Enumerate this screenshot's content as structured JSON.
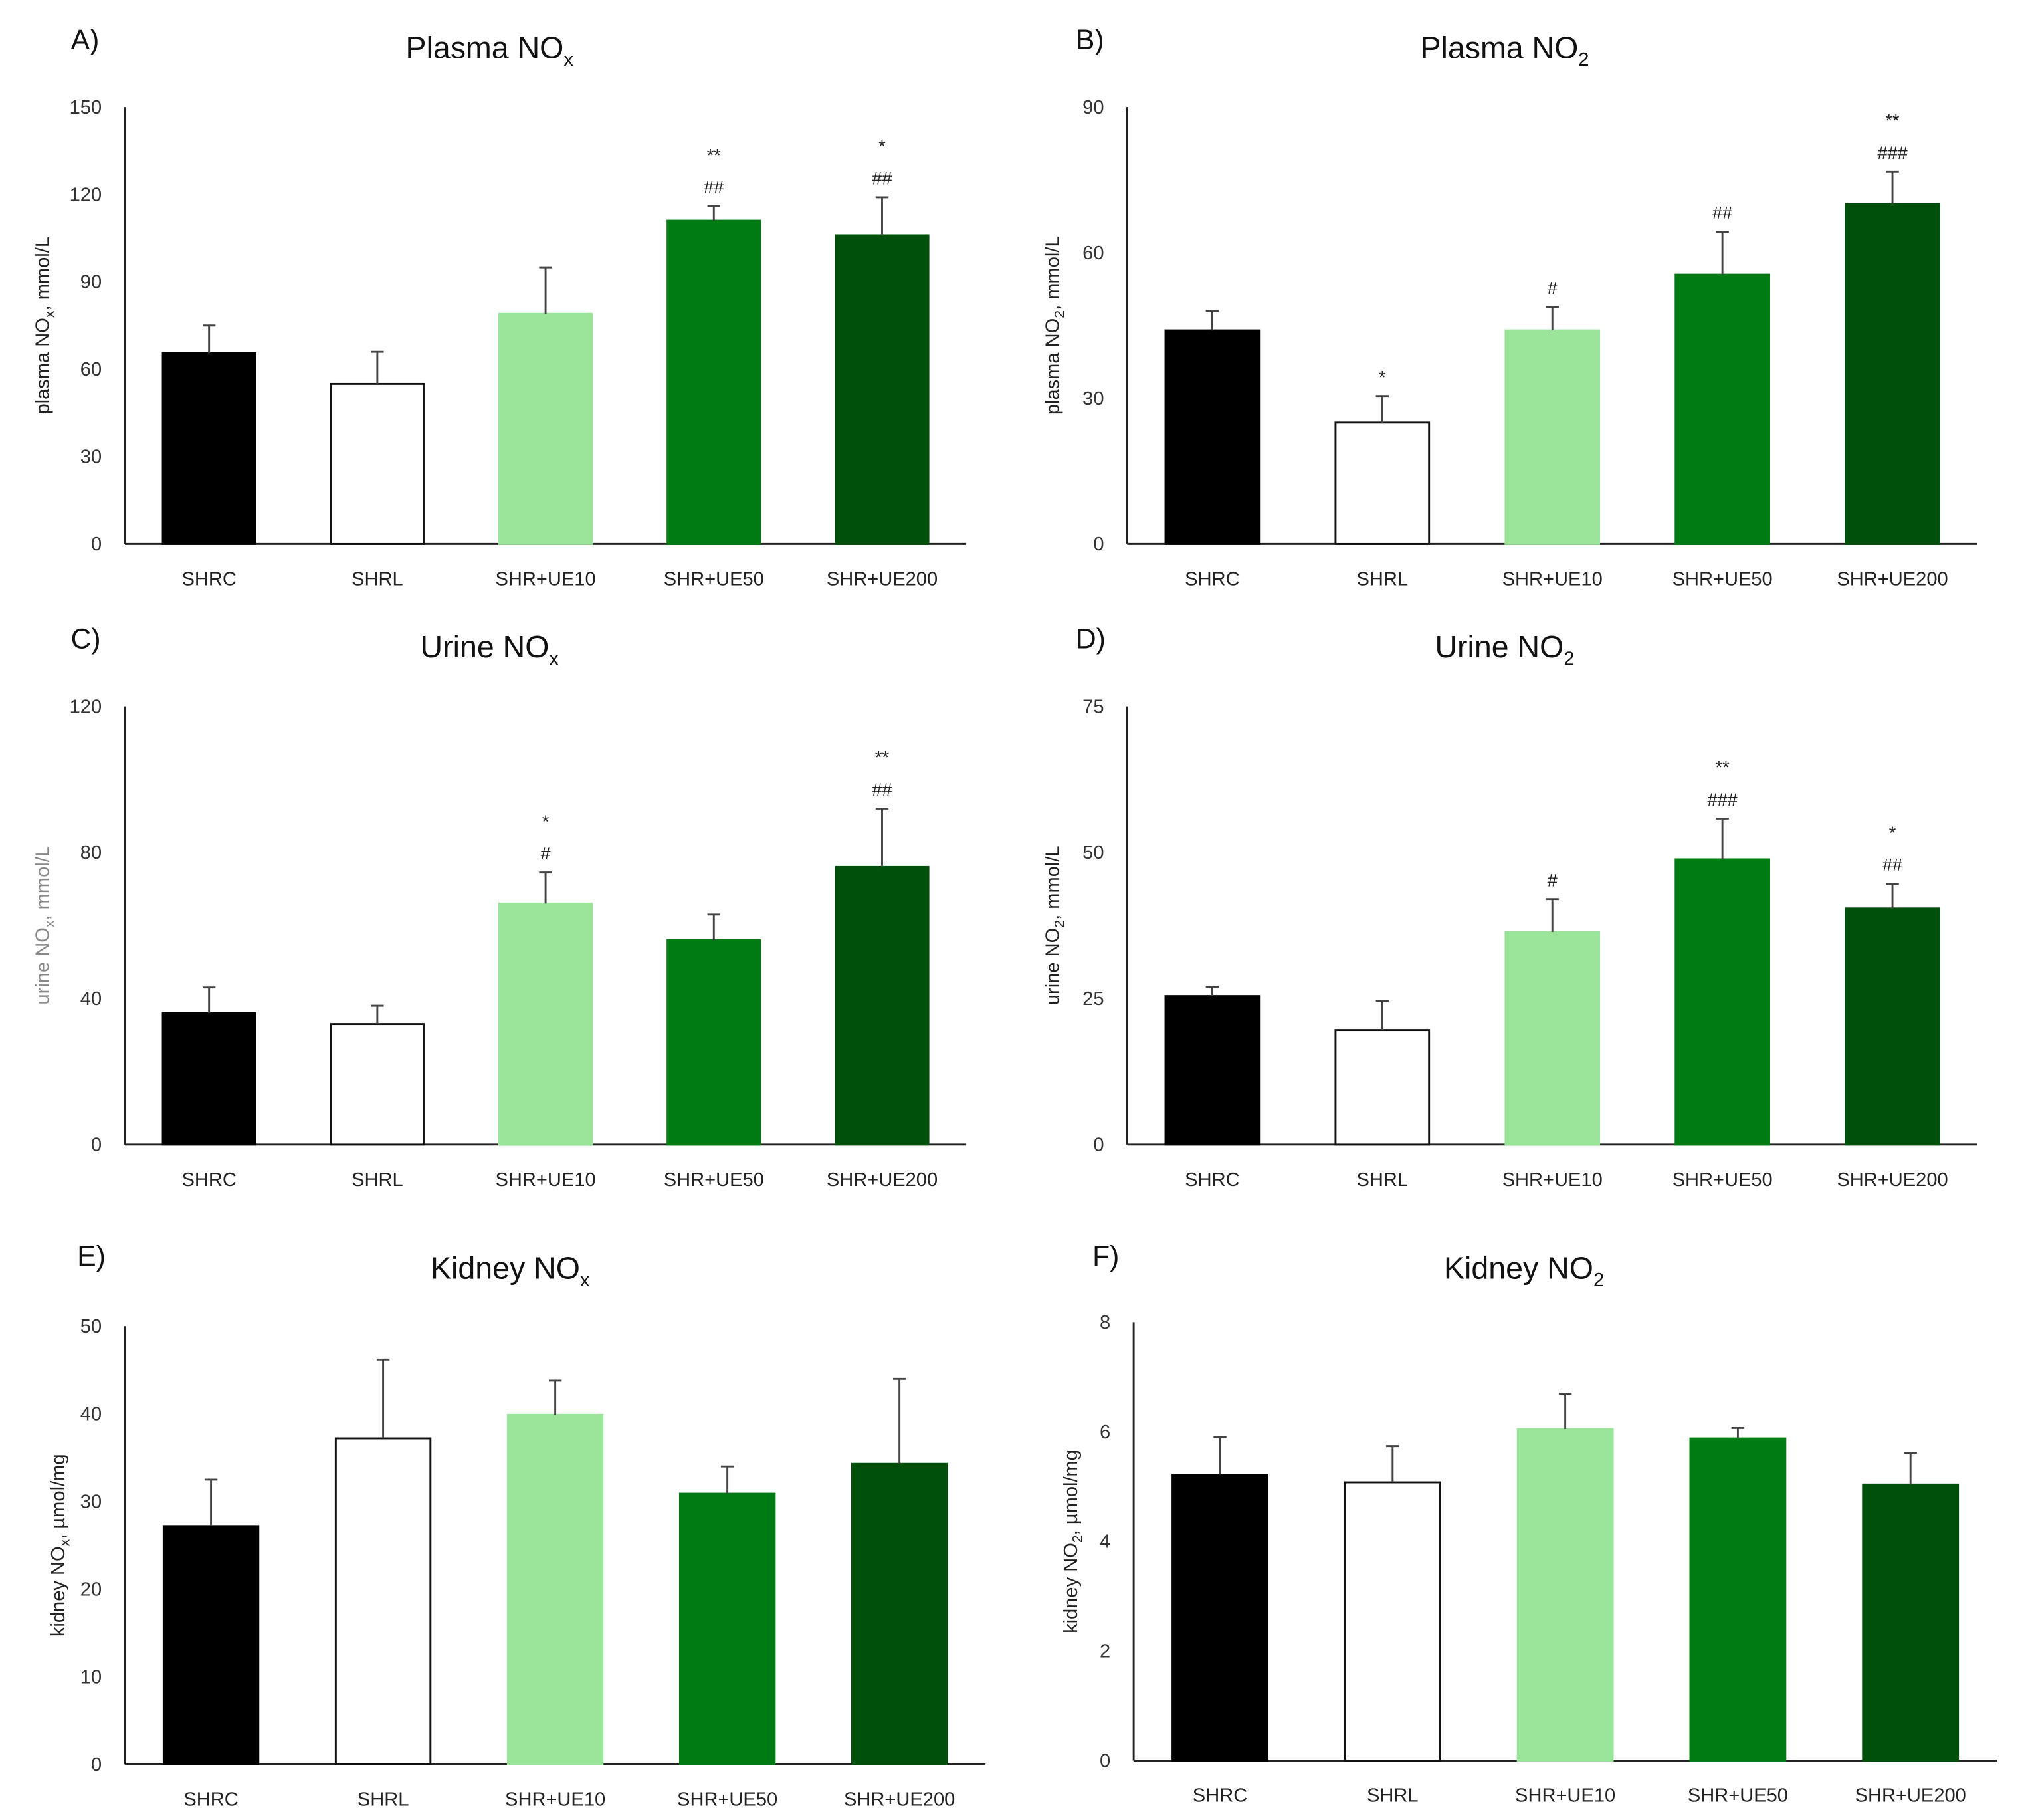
{
  "colors": {
    "SHRC": "#000000",
    "SHRL": "#ffffff",
    "SHR+UE10": "#9be59b",
    "SHR+UE50": "#007a12",
    "SHR+UE200": "#004f0a"
  },
  "chart_data": [
    {
      "type": "bar",
      "panel": "A)",
      "title": [
        "Plasma NO",
        "x"
      ],
      "ylabel": [
        "plasma NO",
        "x",
        ", mmol/L"
      ],
      "categories": [
        "SHRC",
        "SHRL",
        "SHR+UE10",
        "SHR+UE50",
        "SHR+UE200"
      ],
      "values": [
        65.5,
        55,
        79,
        111,
        106
      ],
      "errors": [
        9.5,
        11,
        16,
        5,
        13
      ],
      "annotations": [
        [],
        [],
        [],
        [
          "**",
          "##"
        ],
        [
          "*",
          "##"
        ]
      ],
      "ylim": [
        0,
        150
      ],
      "yticks": [
        0,
        30,
        60,
        90,
        120,
        150
      ],
      "grid": false
    },
    {
      "type": "bar",
      "panel": "B)",
      "title": [
        "Plasma NO",
        "2"
      ],
      "ylabel": [
        "plasma NO",
        "2",
        ", mmol/L"
      ],
      "categories": [
        "SHRC",
        "SHRL",
        "SHR+UE10",
        "SHR+UE50",
        "SHR+UE200"
      ],
      "values": [
        44,
        25,
        44,
        55.5,
        70
      ],
      "errors": [
        4,
        5.5,
        4.8,
        8.8,
        6.7
      ],
      "annotations": [
        [],
        [
          "*"
        ],
        [
          "#"
        ],
        [
          "##"
        ],
        [
          "**",
          "###"
        ]
      ],
      "ylim": [
        0,
        90
      ],
      "yticks": [
        0,
        30,
        60,
        90
      ],
      "grid": false
    },
    {
      "type": "bar",
      "panel": "C)",
      "title": [
        "Urine NO",
        "x"
      ],
      "ylabel": [
        "urine NO",
        "x",
        ", mmol/L"
      ],
      "categories": [
        "SHRC",
        "SHRL",
        "SHR+UE10",
        "SHR+UE50",
        "SHR+UE200"
      ],
      "values": [
        36,
        33,
        66,
        56,
        76
      ],
      "errors": [
        7,
        5,
        8.5,
        7,
        16
      ],
      "annotations": [
        [],
        [],
        [
          "*",
          "#"
        ],
        [],
        [
          "**",
          "##"
        ]
      ],
      "ylim": [
        0,
        120
      ],
      "yticks": [
        0,
        40,
        80,
        120
      ],
      "grid": false
    },
    {
      "type": "bar",
      "panel": "D)",
      "title": [
        "Urine NO",
        "2"
      ],
      "ylabel": [
        "urine NO",
        "2",
        ", mmol/L"
      ],
      "categories": [
        "SHRC",
        "SHRL",
        "SHR+UE10",
        "SHR+UE50",
        "SHR+UE200"
      ],
      "values": [
        25.4,
        19.6,
        36.4,
        48.8,
        40.4
      ],
      "errors": [
        1.6,
        5,
        5.6,
        7,
        4.2
      ],
      "annotations": [
        [],
        [],
        [
          "#"
        ],
        [
          "**",
          "###"
        ],
        [
          "*",
          "##"
        ]
      ],
      "ylim": [
        0,
        75
      ],
      "yticks": [
        0,
        25,
        50,
        75
      ],
      "grid": false
    },
    {
      "type": "bar",
      "panel": "E)",
      "title": [
        "Kidney NO",
        "x"
      ],
      "ylabel": [
        "kidney NO",
        "x",
        ", µmol/mg"
      ],
      "categories": [
        "SHRC",
        "SHRL",
        "SHR+UE10",
        "SHR+UE50",
        "SHR+UE200"
      ],
      "values": [
        27.2,
        37.2,
        39.9,
        30.9,
        34.3
      ],
      "errors": [
        5.3,
        9,
        3.9,
        3.1,
        9.7
      ],
      "annotations": [
        [],
        [],
        [],
        [],
        []
      ],
      "ylim": [
        0,
        50
      ],
      "yticks": [
        0,
        10,
        20,
        30,
        40,
        50
      ],
      "grid": false
    },
    {
      "type": "bar",
      "panel": "F)",
      "title": [
        "Kidney NO",
        "2"
      ],
      "ylabel": [
        "kidney NO",
        "2",
        ", µmol/mg"
      ],
      "categories": [
        "SHRC",
        "SHRL",
        "SHR+UE10",
        "SHR+UE50",
        "SHR+UE200"
      ],
      "values": [
        5.22,
        5.08,
        6.05,
        5.88,
        5.04
      ],
      "errors": [
        0.68,
        0.66,
        0.65,
        0.19,
        0.58
      ],
      "annotations": [
        [],
        [],
        [],
        [],
        []
      ],
      "ylim": [
        0,
        8
      ],
      "yticks": [
        0,
        2,
        4,
        6,
        8
      ],
      "grid": false
    }
  ]
}
